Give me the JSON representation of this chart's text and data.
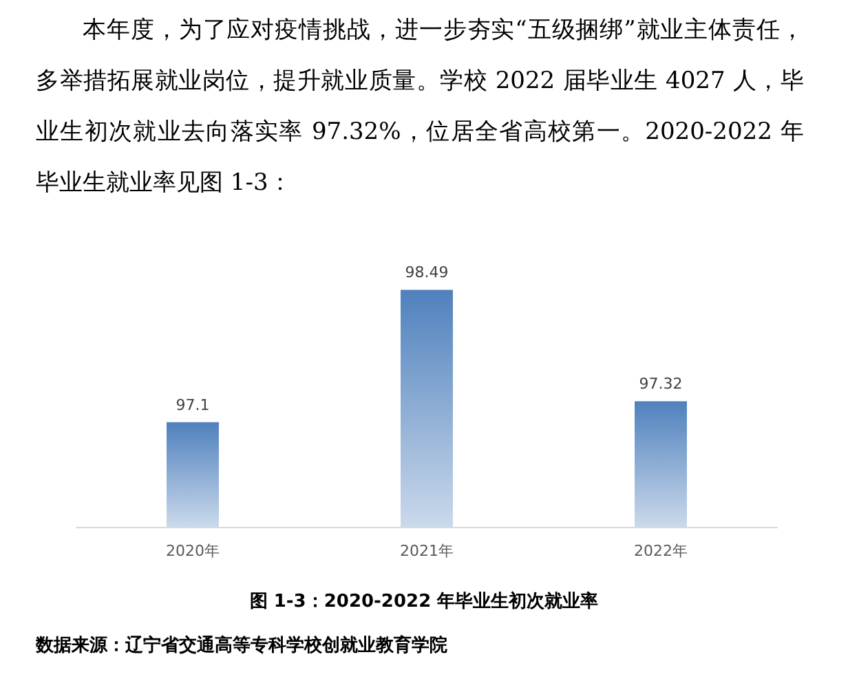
{
  "chart_data": {
    "type": "bar",
    "subtitle": "本年度，为了应对疫情挑战，进一步夯实“五级捆绑”就业主体责任，多举措拓展就业岗位，提升就业质量。学校 2022 届毕业生 4027 人，毕业生初次就业去向落实率 97.32%，位居全省高校第一。2020-2022 年毕业生就业率见图 1-3：",
    "title": "图 1-3：2020-2022 年毕业生初次就业率",
    "annotations": [
      "数据来源：辽宁省交通高等专科学校创就业教育学院"
    ],
    "categories": [
      "2020年",
      "2021年",
      "2022年"
    ],
    "values": [
      97.1,
      98.49,
      97.32
    ],
    "color": "#4f81bd",
    "ylim": [
      96,
      98.5
    ],
    "data_labels": true
  }
}
